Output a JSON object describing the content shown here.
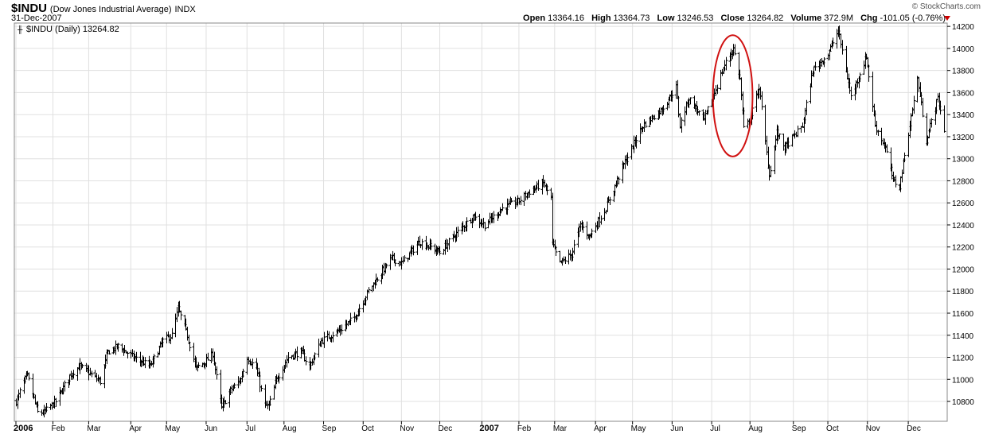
{
  "header": {
    "symbol": "$INDU",
    "name": "(Dow Jones Industrial Average)",
    "exchange": "INDX",
    "date": "31-Dec-2007",
    "copyright": "© StockCharts.com",
    "quote": {
      "open_label": "Open",
      "open": "13364.16",
      "high_label": "High",
      "high": "13364.73",
      "low_label": "Low",
      "low": "13246.53",
      "close_label": "Close",
      "close": "13264.82",
      "volume_label": "Volume",
      "volume": "372.9M",
      "chg_label": "Chg",
      "chg": "-101.05 (-0.76%)"
    }
  },
  "plot_label": "$INDU (Daily) 13264.82",
  "colors": {
    "bars": "#000000",
    "grid": "#e0e0e0",
    "annotation": "#d01010",
    "down_arrow": "#cc0000"
  },
  "chart_data": {
    "type": "ohlc",
    "ylim": [
      10620,
      14230
    ],
    "yticks": [
      10800,
      11000,
      11200,
      11400,
      11600,
      11800,
      12000,
      12200,
      12400,
      12600,
      12800,
      13000,
      13200,
      13400,
      13600,
      13800,
      14000,
      14200
    ],
    "x_range": [
      "2006-01-03",
      "2007-12-31"
    ],
    "x_ticks": [
      {
        "label": "2006",
        "date": "2006-01-03",
        "bold": true
      },
      {
        "label": "Feb",
        "date": "2006-02-01"
      },
      {
        "label": "Mar",
        "date": "2006-03-01"
      },
      {
        "label": "Apr",
        "date": "2006-04-03"
      },
      {
        "label": "May",
        "date": "2006-05-01"
      },
      {
        "label": "Jun",
        "date": "2006-06-01"
      },
      {
        "label": "Jul",
        "date": "2006-07-03"
      },
      {
        "label": "Aug",
        "date": "2006-08-01"
      },
      {
        "label": "Sep",
        "date": "2006-09-01"
      },
      {
        "label": "Oct",
        "date": "2006-10-02"
      },
      {
        "label": "Nov",
        "date": "2006-11-01"
      },
      {
        "label": "Dec",
        "date": "2006-12-01"
      },
      {
        "label": "2007",
        "date": "2007-01-03",
        "bold": true
      },
      {
        "label": "Feb",
        "date": "2007-02-01"
      },
      {
        "label": "Mar",
        "date": "2007-03-01"
      },
      {
        "label": "Apr",
        "date": "2007-04-02"
      },
      {
        "label": "May",
        "date": "2007-05-01"
      },
      {
        "label": "Jun",
        "date": "2007-06-01"
      },
      {
        "label": "Jul",
        "date": "2007-07-02"
      },
      {
        "label": "Aug",
        "date": "2007-08-01"
      },
      {
        "label": "Sep",
        "date": "2007-09-04"
      },
      {
        "label": "Oct",
        "date": "2007-10-01"
      },
      {
        "label": "Nov",
        "date": "2007-11-01"
      },
      {
        "label": "Dec",
        "date": "2007-12-03"
      }
    ],
    "closes": [
      {
        "date": "2006-01-03",
        "close": 10800
      },
      {
        "date": "2006-01-10",
        "close": 11000
      },
      {
        "date": "2006-01-12",
        "close": 11030
      },
      {
        "date": "2006-01-20",
        "close": 10700
      },
      {
        "date": "2006-01-25",
        "close": 10700
      },
      {
        "date": "2006-02-03",
        "close": 10800
      },
      {
        "date": "2006-02-15",
        "close": 11050
      },
      {
        "date": "2006-02-22",
        "close": 11120
      },
      {
        "date": "2006-03-10",
        "close": 10980
      },
      {
        "date": "2006-03-16",
        "close": 11250
      },
      {
        "date": "2006-03-24",
        "close": 11300
      },
      {
        "date": "2006-04-05",
        "close": 11200
      },
      {
        "date": "2006-04-18",
        "close": 11120
      },
      {
        "date": "2006-04-28",
        "close": 11350
      },
      {
        "date": "2006-05-05",
        "close": 11400
      },
      {
        "date": "2006-05-10",
        "close": 11640
      },
      {
        "date": "2006-05-17",
        "close": 11400
      },
      {
        "date": "2006-05-24",
        "close": 11100
      },
      {
        "date": "2006-06-01",
        "close": 11170
      },
      {
        "date": "2006-06-06",
        "close": 11230
      },
      {
        "date": "2006-06-13",
        "close": 10740
      },
      {
        "date": "2006-06-20",
        "close": 10900
      },
      {
        "date": "2006-06-28",
        "close": 11000
      },
      {
        "date": "2006-07-03",
        "close": 11200
      },
      {
        "date": "2006-07-10",
        "close": 11100
      },
      {
        "date": "2006-07-17",
        "close": 10760
      },
      {
        "date": "2006-07-20",
        "close": 10760
      },
      {
        "date": "2006-07-26",
        "close": 11000
      },
      {
        "date": "2006-08-04",
        "close": 11200
      },
      {
        "date": "2006-08-14",
        "close": 11250
      },
      {
        "date": "2006-08-21",
        "close": 11120
      },
      {
        "date": "2006-08-30",
        "close": 11350
      },
      {
        "date": "2006-09-14",
        "close": 11450
      },
      {
        "date": "2006-09-25",
        "close": 11560
      },
      {
        "date": "2006-10-06",
        "close": 11800
      },
      {
        "date": "2006-10-24",
        "close": 12100
      },
      {
        "date": "2006-11-01",
        "close": 12050
      },
      {
        "date": "2006-11-15",
        "close": 12250
      },
      {
        "date": "2006-11-24",
        "close": 12200
      },
      {
        "date": "2006-12-01",
        "close": 12150
      },
      {
        "date": "2006-12-12",
        "close": 12300
      },
      {
        "date": "2006-12-27",
        "close": 12480
      },
      {
        "date": "2007-01-05",
        "close": 12400
      },
      {
        "date": "2007-01-19",
        "close": 12550
      },
      {
        "date": "2007-02-01",
        "close": 12620
      },
      {
        "date": "2007-02-09",
        "close": 12700
      },
      {
        "date": "2007-02-20",
        "close": 12780
      },
      {
        "date": "2007-02-26",
        "close": 12640
      },
      {
        "date": "2007-02-27",
        "close": 12230
      },
      {
        "date": "2007-03-05",
        "close": 12050
      },
      {
        "date": "2007-03-14",
        "close": 12130
      },
      {
        "date": "2007-03-21",
        "close": 12400
      },
      {
        "date": "2007-03-28",
        "close": 12300
      },
      {
        "date": "2007-04-10",
        "close": 12550
      },
      {
        "date": "2007-04-24",
        "close": 12950
      },
      {
        "date": "2007-05-09",
        "close": 13300
      },
      {
        "date": "2007-05-24",
        "close": 13450
      },
      {
        "date": "2007-06-04",
        "close": 13650
      },
      {
        "date": "2007-06-07",
        "close": 13300
      },
      {
        "date": "2007-06-14",
        "close": 13550
      },
      {
        "date": "2007-06-26",
        "close": 13350
      },
      {
        "date": "2007-07-03",
        "close": 13570
      },
      {
        "date": "2007-07-12",
        "close": 13850
      },
      {
        "date": "2007-07-19",
        "close": 14000
      },
      {
        "date": "2007-07-24",
        "close": 13720
      },
      {
        "date": "2007-07-27",
        "close": 13270
      },
      {
        "date": "2007-08-01",
        "close": 13350
      },
      {
        "date": "2007-08-08",
        "close": 13650
      },
      {
        "date": "2007-08-16",
        "close": 12850
      },
      {
        "date": "2007-08-22",
        "close": 13240
      },
      {
        "date": "2007-08-28",
        "close": 13100
      },
      {
        "date": "2007-09-11",
        "close": 13300
      },
      {
        "date": "2007-09-19",
        "close": 13800
      },
      {
        "date": "2007-10-01",
        "close": 13950
      },
      {
        "date": "2007-10-09",
        "close": 14160
      },
      {
        "date": "2007-10-19",
        "close": 13560
      },
      {
        "date": "2007-10-31",
        "close": 13930
      },
      {
        "date": "2007-11-07",
        "close": 13300
      },
      {
        "date": "2007-11-15",
        "close": 13100
      },
      {
        "date": "2007-11-21",
        "close": 12800
      },
      {
        "date": "2007-11-26",
        "close": 12750
      },
      {
        "date": "2007-12-10",
        "close": 13730
      },
      {
        "date": "2007-12-17",
        "close": 13170
      },
      {
        "date": "2007-12-26",
        "close": 13550
      },
      {
        "date": "2007-12-31",
        "close": 13265
      }
    ],
    "annotations": [
      {
        "type": "ellipse",
        "from": "2007-07-03",
        "to": "2007-08-03",
        "low": 13020,
        "high": 14120
      }
    ]
  }
}
